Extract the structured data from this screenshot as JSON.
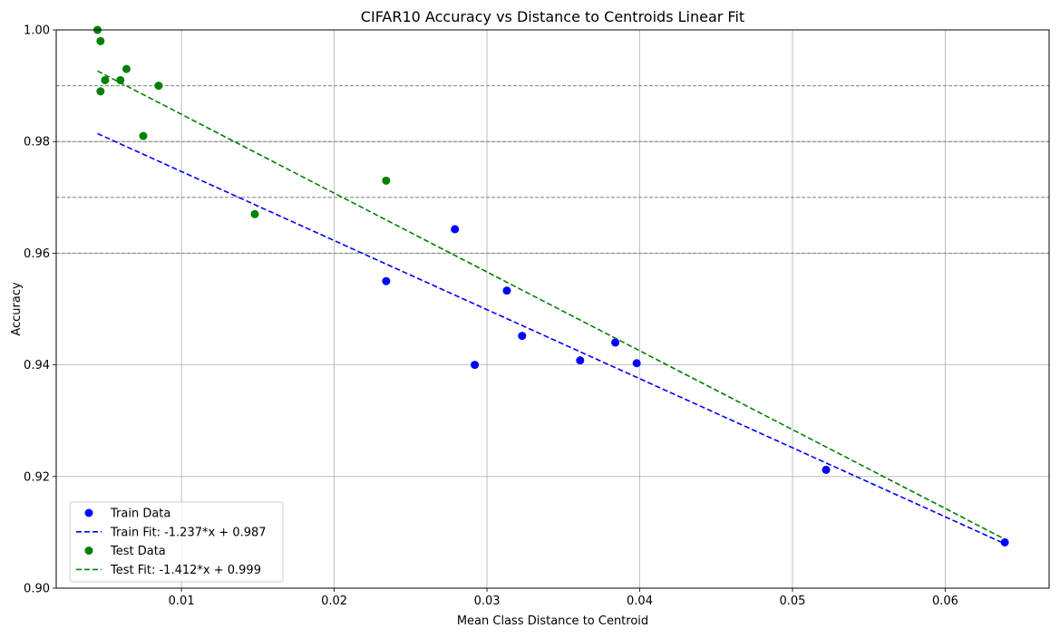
{
  "chart_data": {
    "type": "scatter",
    "title": "CIFAR10 Accuracy vs Distance to Centroids Linear Fit",
    "xlabel": "Mean Class Distance to Centroid",
    "ylabel": "Accuracy",
    "xlim": [
      0.0018,
      0.0668
    ],
    "ylim": [
      0.9,
      1.0
    ],
    "x_ticks": [
      0.01,
      0.02,
      0.03,
      0.04,
      0.05,
      0.06
    ],
    "x_tick_labels": [
      "0.01",
      "0.02",
      "0.03",
      "0.04",
      "0.05",
      "0.06"
    ],
    "y_ticks": [
      0.9,
      0.92,
      0.94,
      0.96,
      0.98,
      1.0
    ],
    "y_tick_labels": [
      "0.90",
      "0.92",
      "0.94",
      "0.96",
      "0.98",
      "1.00"
    ],
    "grid": true,
    "reference_lines_y": [
      0.96,
      0.97,
      0.98,
      0.99
    ],
    "legend_position": "lower-left",
    "series": [
      {
        "name": "Train Data",
        "kind": "scatter",
        "color": "#0000ff",
        "points": [
          [
            0.0234,
            0.955
          ],
          [
            0.0279,
            0.9643
          ],
          [
            0.0292,
            0.94
          ],
          [
            0.0313,
            0.9533
          ],
          [
            0.0323,
            0.9452
          ],
          [
            0.0361,
            0.9408
          ],
          [
            0.0384,
            0.944
          ],
          [
            0.0398,
            0.9403
          ],
          [
            0.0522,
            0.9212
          ],
          [
            0.0639,
            0.9082
          ]
        ]
      },
      {
        "name": "Train Fit: -1.237*x + 0.987",
        "kind": "line",
        "color": "#0000ff",
        "dash": "dashed",
        "slope": -1.237,
        "intercept": 0.987,
        "x_range": [
          0.0045,
          0.0639
        ]
      },
      {
        "name": "Test Data",
        "kind": "scatter",
        "color": "#008000",
        "points": [
          [
            0.0045,
            1.0
          ],
          [
            0.0047,
            0.998
          ],
          [
            0.0047,
            0.989
          ],
          [
            0.005,
            0.991
          ],
          [
            0.006,
            0.991
          ],
          [
            0.0064,
            0.993
          ],
          [
            0.0075,
            0.981
          ],
          [
            0.0085,
            0.99
          ],
          [
            0.0148,
            0.967
          ],
          [
            0.0234,
            0.973
          ]
        ]
      },
      {
        "name": "Test Fit: -1.412*x + 0.999",
        "kind": "line",
        "color": "#008000",
        "dash": "dashed",
        "slope": -1.412,
        "intercept": 0.999,
        "x_range": [
          0.0045,
          0.0639
        ]
      }
    ]
  }
}
